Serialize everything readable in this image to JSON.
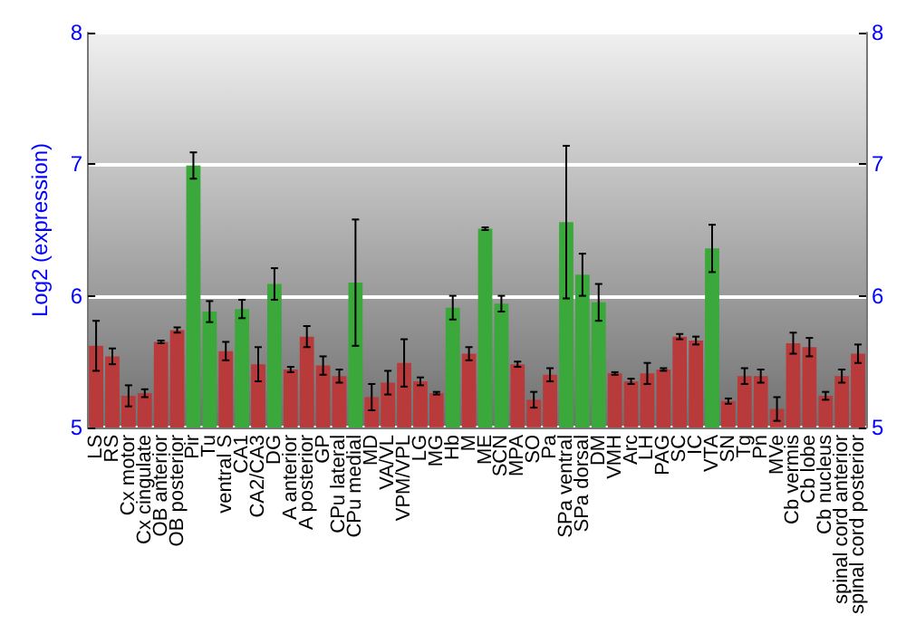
{
  "chart_data": {
    "type": "bar",
    "ylabel": "Log2 (expression)",
    "categories": [
      "LS",
      "RS",
      "Cx motor",
      "Cx cingulate",
      "OB anterior",
      "OB posterior",
      "Pir",
      "Tu",
      "ventral S",
      "CA1",
      "CA2/CA3",
      "DG",
      "A anterior",
      "A posterior",
      "GP",
      "CPu lateral",
      "CPu medial",
      "MD",
      "VA/VL",
      "VPM/VPL",
      "LG",
      "MG",
      "Hb",
      "M",
      "ME",
      "SCN",
      "MPA",
      "SO",
      "Pa",
      "SPa ventral",
      "SPa dorsal",
      "DM",
      "VMH",
      "Arc",
      "LH",
      "PAG",
      "SC",
      "IC",
      "VTA",
      "SN",
      "Tg",
      "Pn",
      "MVe",
      "Cb vermis",
      "Cb lobe",
      "Cb nucleus",
      "spinal cord anterior",
      "spinal cord posterior"
    ],
    "values": [
      5.62,
      5.54,
      5.24,
      5.26,
      5.65,
      5.74,
      6.99,
      5.88,
      5.58,
      5.9,
      5.48,
      6.09,
      5.44,
      5.69,
      5.47,
      5.39,
      6.1,
      5.23,
      5.34,
      5.49,
      5.35,
      5.26,
      5.91,
      5.56,
      6.51,
      5.94,
      5.48,
      5.21,
      5.4,
      6.56,
      6.16,
      5.95,
      5.41,
      5.35,
      5.41,
      5.44,
      5.69,
      5.66,
      6.36,
      5.2,
      5.39,
      5.39,
      5.14,
      5.64,
      5.61,
      5.24,
      5.39,
      5.56
    ],
    "errors": [
      0.19,
      0.06,
      0.08,
      0.03,
      0.01,
      0.02,
      0.1,
      0.08,
      0.07,
      0.07,
      0.13,
      0.12,
      0.02,
      0.08,
      0.07,
      0.05,
      0.48,
      0.1,
      0.09,
      0.18,
      0.03,
      0.01,
      0.09,
      0.05,
      0.01,
      0.06,
      0.02,
      0.06,
      0.05,
      0.58,
      0.16,
      0.14,
      0.01,
      0.02,
      0.08,
      0.01,
      0.02,
      0.03,
      0.18,
      0.02,
      0.06,
      0.05,
      0.09,
      0.08,
      0.07,
      0.03,
      0.05,
      0.07
    ],
    "colors": [
      "#b83a3a",
      "#b83a3a",
      "#b83a3a",
      "#b83a3a",
      "#b83a3a",
      "#b83a3a",
      "#3aa83a",
      "#3aa83a",
      "#b83a3a",
      "#3aa83a",
      "#b83a3a",
      "#3aa83a",
      "#b83a3a",
      "#b83a3a",
      "#b83a3a",
      "#b83a3a",
      "#3aa83a",
      "#b83a3a",
      "#b83a3a",
      "#b83a3a",
      "#b83a3a",
      "#b83a3a",
      "#3aa83a",
      "#b83a3a",
      "#3aa83a",
      "#3aa83a",
      "#b83a3a",
      "#b83a3a",
      "#b83a3a",
      "#3aa83a",
      "#3aa83a",
      "#3aa83a",
      "#b83a3a",
      "#b83a3a",
      "#b83a3a",
      "#b83a3a",
      "#b83a3a",
      "#b83a3a",
      "#3aa83a",
      "#b83a3a",
      "#b83a3a",
      "#b83a3a",
      "#b83a3a",
      "#b83a3a",
      "#b83a3a",
      "#b83a3a",
      "#b83a3a",
      "#b83a3a"
    ],
    "ylim": [
      5,
      8
    ],
    "yticks": [
      5,
      6,
      7,
      8
    ],
    "y2lim": [
      5,
      8
    ],
    "y2ticks": [
      5,
      6,
      7,
      8
    ],
    "grid": "y"
  }
}
